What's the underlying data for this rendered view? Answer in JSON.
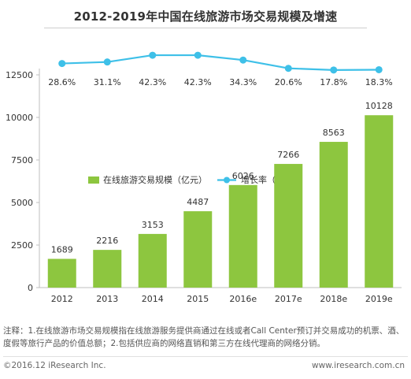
{
  "chart_data": {
    "type": "bar",
    "title": "2012-2019年中国在线旅游市场交易规模及增速",
    "categories": [
      "2012",
      "2013",
      "2014",
      "2015",
      "2016e",
      "2017e",
      "2018e",
      "2019e"
    ],
    "series": [
      {
        "name": "在线旅游交易规模（亿元）",
        "type": "bar",
        "values": [
          1689,
          2216,
          3153,
          4487,
          6026,
          7266,
          8563,
          10128
        ],
        "labels": [
          "1689",
          "2216",
          "3153",
          "4487",
          "6026",
          "7266",
          "8563",
          "10128"
        ],
        "color": "#8dc63f"
      },
      {
        "name": "增长率（%）",
        "type": "line",
        "values": [
          28.6,
          31.1,
          42.3,
          42.3,
          34.3,
          20.6,
          17.8,
          18.3
        ],
        "labels": [
          "28.6%",
          "31.1%",
          "42.3%",
          "42.3%",
          "34.3%",
          "20.6%",
          "17.8%",
          "18.3%"
        ],
        "color": "#3ec0e8"
      }
    ],
    "ylim": [
      0,
      12500
    ],
    "yticks": [
      0,
      2500,
      5000,
      7500,
      10000,
      12500
    ],
    "ytick_labels": [
      "0",
      "2500",
      "5000",
      "7500",
      "10000",
      "12500"
    ],
    "grid": false,
    "legend_position": "top-left"
  },
  "note": "注释：1.在线旅游市场交易规模指在线旅游服务提供商通过在线或者Call Center预订并交易成功的机票、酒、度假等旅行产品的价值总额；2.包括供应商的网络直销和第三方在线代理商的网络分销。",
  "footer": {
    "copyright": "©2016.12 iResearch Inc.",
    "site": "www.iresearch.com.cn"
  }
}
